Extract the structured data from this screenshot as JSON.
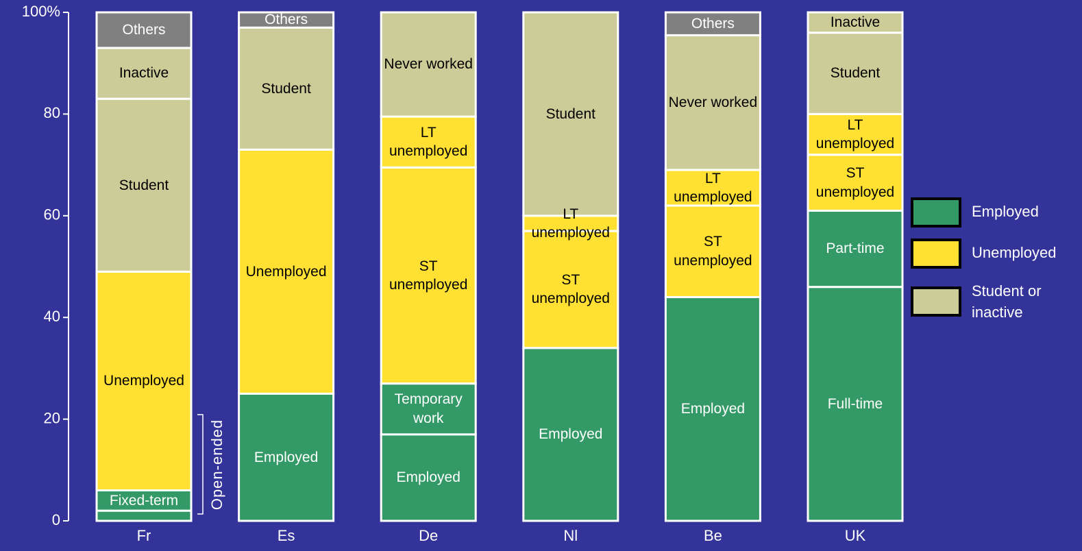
{
  "chart_data": {
    "type": "stacked_bar",
    "ylim": [
      0,
      100
    ],
    "yticks": [
      0,
      20,
      40,
      60,
      80,
      {
        "value": 100,
        "label": "100%"
      }
    ],
    "categories": [
      "Fr",
      "Es",
      "De",
      "Nl",
      "Be",
      "UK"
    ],
    "stacks": [
      [
        {
          "label": null,
          "value": 2,
          "color": "#339966"
        },
        {
          "label": "Fixed-term",
          "value": 4,
          "color": "#339966"
        },
        {
          "label": "Unemployed",
          "value": 43,
          "color": "#ffe033"
        },
        {
          "label": "Student",
          "value": 34,
          "color": "#cccc99"
        },
        {
          "label": "Inactive",
          "value": 10,
          "color": "#cccc99"
        },
        {
          "label": "Others",
          "value": 7,
          "color": "#808080"
        }
      ],
      [
        {
          "label": "Employed",
          "value": 25,
          "color": "#339966"
        },
        {
          "label": "Unemployed",
          "value": 48,
          "color": "#ffe033"
        },
        {
          "label": "Student",
          "value": 24,
          "color": "#cccc99"
        },
        {
          "label": "Others",
          "value": 3,
          "color": "#808080"
        }
      ],
      [
        {
          "label": "Employed",
          "value": 17,
          "color": "#339966"
        },
        {
          "label": "Temporary work",
          "value": 10,
          "color": "#339966"
        },
        {
          "label": "ST unemployed",
          "value": 42.5,
          "color": "#ffe033"
        },
        {
          "label": "LT unemployed",
          "value": 10,
          "color": "#ffe033"
        },
        {
          "label": "Never worked",
          "value": 20.5,
          "color": "#cccc99"
        }
      ],
      [
        {
          "label": "Employed",
          "value": 34,
          "color": "#339966"
        },
        {
          "label": "ST unemployed",
          "value": 23,
          "color": "#ffe033"
        },
        {
          "label": "LT unemployed",
          "value": 3,
          "color": "#ffe033"
        },
        {
          "label": "Student",
          "value": 40,
          "color": "#cccc99"
        }
      ],
      [
        {
          "label": "Employed",
          "value": 44,
          "color": "#339966"
        },
        {
          "label": "ST unemployed",
          "value": 18,
          "color": "#ffe033"
        },
        {
          "label": "LT unemployed",
          "value": 7,
          "color": "#ffe033"
        },
        {
          "label": "Never worked",
          "value": 26.5,
          "color": "#cccc99"
        },
        {
          "label": "Others",
          "value": 4.5,
          "color": "#808080"
        }
      ],
      [
        {
          "label": "Full-time",
          "value": 46,
          "color": "#339966"
        },
        {
          "label": "Part-time",
          "value": 15,
          "color": "#339966"
        },
        {
          "label": "ST unemployed",
          "value": 11,
          "color": "#ffe033"
        },
        {
          "label": "LT unemployed",
          "value": 8,
          "color": "#ffe033"
        },
        {
          "label": "Student",
          "value": 16,
          "color": "#cccc99"
        },
        {
          "label": "Inactive",
          "value": 4,
          "color": "#cccc99"
        }
      ]
    ],
    "legend": [
      {
        "name": "Employed",
        "color": "#339966"
      },
      {
        "name": "Unemployed",
        "color": "#ffe033"
      },
      {
        "name": "Student or inactive",
        "color": "#cccc99"
      }
    ],
    "annotations": [
      "Open-ended"
    ]
  }
}
